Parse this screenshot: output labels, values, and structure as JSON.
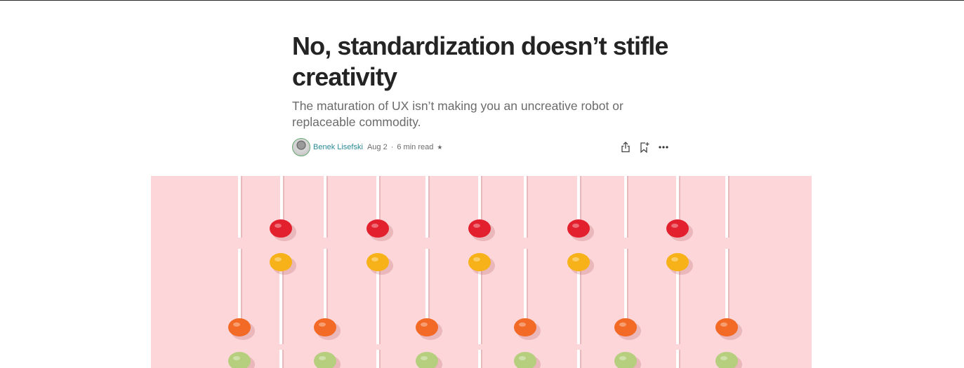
{
  "article": {
    "title": "No, standardization doesn’t stifle creativity",
    "subtitle": "The maturation of UX isn’t making you an uncreative robot or replaceable commodity."
  },
  "byline": {
    "author": "Benek Lisefski",
    "date": "Aug 2",
    "separator": "·",
    "read_time": "6 min read",
    "member_icon": "star-icon"
  },
  "actions": {
    "share_icon": "share-icon",
    "bookmark_icon": "bookmark-add-icon",
    "more_icon": "more-horizontal-icon"
  },
  "hero_image": {
    "subject": "lollipops",
    "background_color": "#fcd6d8",
    "candy_colors": [
      "#e3202e",
      "#f7b219",
      "#f26a26",
      "#b6cf7e"
    ]
  }
}
